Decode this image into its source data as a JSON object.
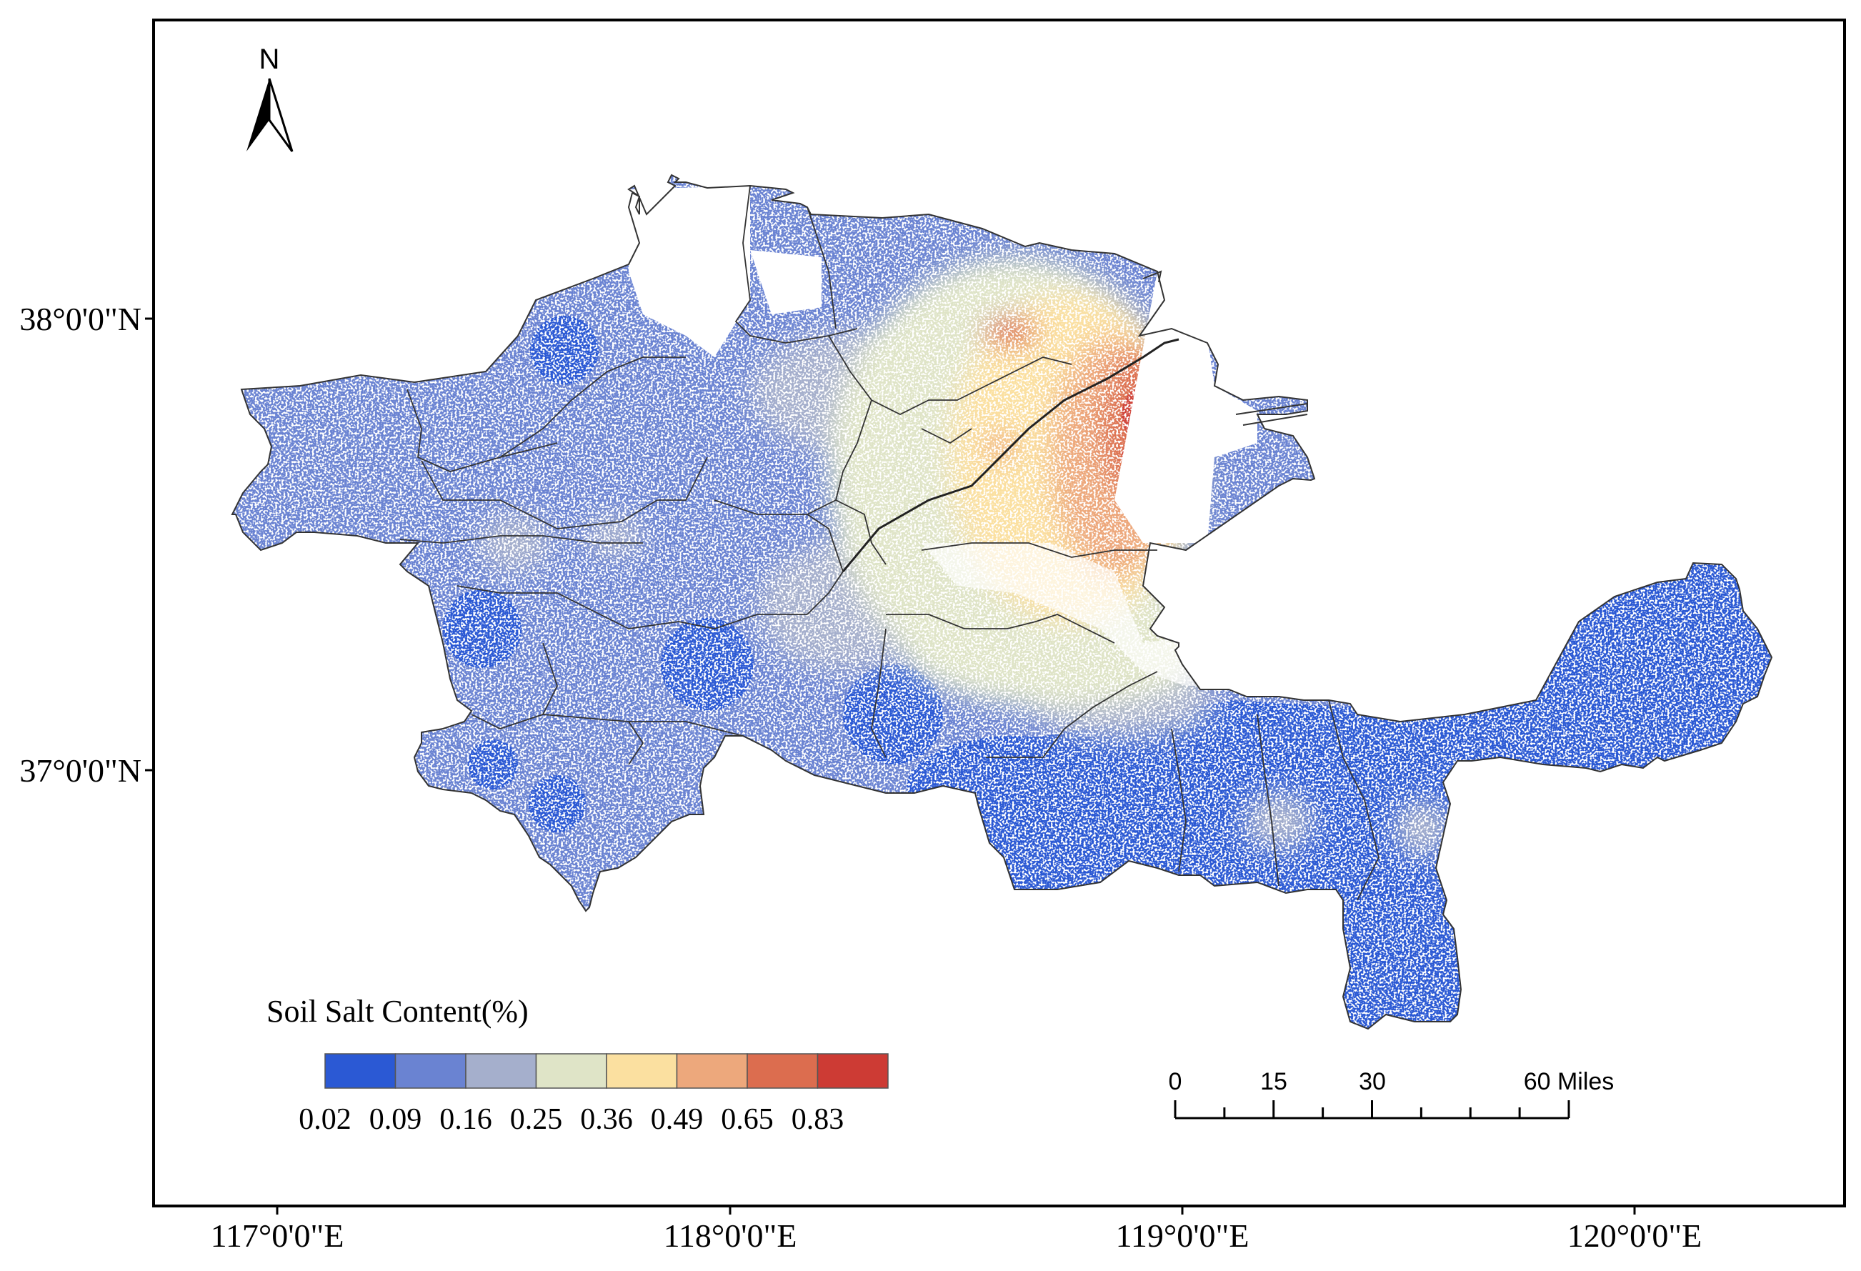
{
  "map": {
    "x_ticks": [
      "117°0'0\"E",
      "118°0'0\"E",
      "119°0'0\"E",
      "120°0'0\"E"
    ],
    "y_ticks": [
      "38°0'0\"N",
      "37°0'0\"N"
    ],
    "north_arrow": {
      "label": "N",
      "icon": "north-arrow-icon"
    },
    "legend": {
      "title": "Soil Salt Content(%)",
      "classes": [
        {
          "color": "#2b59d4"
        },
        {
          "color": "#6a83d2"
        },
        {
          "color": "#a5afcc"
        },
        {
          "color": "#dfe4c7"
        },
        {
          "color": "#fbe0a0"
        },
        {
          "color": "#eda87c"
        },
        {
          "color": "#dc6d4f"
        },
        {
          "color": "#cd3b34"
        }
      ],
      "breaks": [
        "0.02",
        "0.09",
        "0.16",
        "0.25",
        "0.36",
        "0.49",
        "0.65",
        "0.83"
      ]
    },
    "scale_bar": {
      "labels": [
        "0",
        "15",
        "30",
        "60 Miles"
      ]
    },
    "colors": {
      "frame": "#000000",
      "boundary": "#333333",
      "background": "#ffffff"
    }
  }
}
